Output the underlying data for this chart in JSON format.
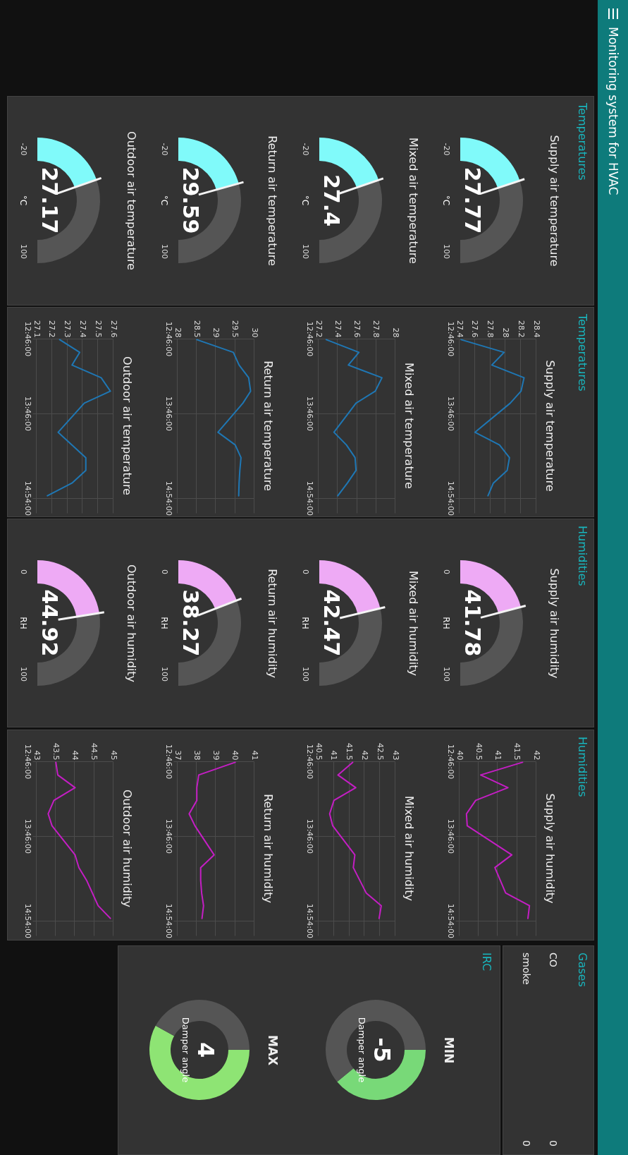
{
  "chart_data": [
    {
      "type": "other",
      "title": "Monitoring system for HVAC"
    },
    {
      "type": "other",
      "title": "Temperatures"
    },
    {
      "type": "donut",
      "title": "Supply air temperature",
      "categories": [
        null,
        null
      ],
      "values": [
        39.81,
        60.19
      ],
      "colors": [
        "#80fafa",
        "#555555"
      ],
      "annotations": [
        "27.77",
        "°C",
        "-20",
        "100"
      ]
    },
    {
      "type": "donut",
      "title": "Mixed air temperature",
      "categories": [
        null,
        null
      ],
      "values": [
        39.5,
        60.5
      ],
      "colors": [
        "#80fafa",
        "#555555"
      ],
      "annotations": [
        "27.4",
        "°C",
        "-20",
        "100"
      ]
    },
    {
      "type": "donut",
      "title": "Return air temperature",
      "categories": [
        null,
        null
      ],
      "values": [
        41.33,
        58.67
      ],
      "colors": [
        "#80fafa",
        "#555555"
      ],
      "annotations": [
        "29.59",
        "°C",
        "-20",
        "100"
      ]
    },
    {
      "type": "donut",
      "title": "Outdoor air temperature",
      "categories": [
        null,
        null
      ],
      "values": [
        39.31,
        60.69
      ],
      "colors": [
        "#80fafa",
        "#555555"
      ],
      "annotations": [
        "27.17",
        "°C",
        "-20",
        "100"
      ]
    },
    {
      "type": "other",
      "title": "Temperatures"
    },
    {
      "type": "line",
      "orientation": "horizontal",
      "title": "Supply air temperature",
      "x": [
        12.78,
        12.95,
        13.12,
        13.29,
        13.47,
        13.63,
        14.02,
        14.19,
        14.36,
        14.53,
        14.7,
        14.87
      ],
      "series": [
        {
          "color": "#1f77b4",
          "values": [
            27.42,
            27.98,
            27.82,
            28.24,
            28.2,
            28.06,
            27.6,
            27.92,
            28.05,
            28.02,
            27.84,
            27.77
          ]
        }
      ],
      "ylim": [
        15.1,
        12.7667
      ],
      "yticks": [
        {
          "value": 12.7667,
          "label": "12:46:00"
        },
        {
          "value": 13.7667,
          "label": "13:46:00"
        },
        {
          "value": 14.9,
          "label": "14:54:00"
        }
      ],
      "xlim": [
        27.4,
        28.4
      ],
      "xticks": [
        27.4,
        27.6,
        27.8,
        28,
        28.2,
        28.4
      ],
      "grid": true
    },
    {
      "type": "line",
      "orientation": "horizontal",
      "title": "Mixed air temperature",
      "x": [
        12.78,
        12.95,
        13.12,
        13.29,
        13.47,
        13.63,
        14.02,
        14.19,
        14.36,
        14.53,
        14.7,
        14.87
      ],
      "series": [
        {
          "color": "#1f77b4",
          "values": [
            27.28,
            27.62,
            27.51,
            27.86,
            27.79,
            27.59,
            27.36,
            27.49,
            27.58,
            27.59,
            27.5,
            27.4
          ]
        }
      ],
      "ylim": [
        15.1,
        12.7667
      ],
      "yticks": [
        {
          "value": 12.7667,
          "label": "12:46:00"
        },
        {
          "value": 13.7667,
          "label": "13:46:00"
        },
        {
          "value": 14.9,
          "label": "14:54:00"
        }
      ],
      "xlim": [
        27.2,
        28
      ],
      "xticks": [
        27.2,
        27.4,
        27.6,
        27.8,
        28
      ],
      "grid": true
    },
    {
      "type": "line",
      "orientation": "horizontal",
      "title": "Return air temperature",
      "x": [
        12.78,
        12.95,
        13.12,
        13.29,
        13.47,
        13.63,
        14.02,
        14.19,
        14.36,
        14.53,
        14.7,
        14.87
      ],
      "series": [
        {
          "color": "#1f77b4",
          "values": [
            28.5,
            29.45,
            29.6,
            29.85,
            29.9,
            29.7,
            29.05,
            29.5,
            29.65,
            29.62,
            29.6,
            29.59
          ]
        }
      ],
      "ylim": [
        15.1,
        12.7667
      ],
      "yticks": [
        {
          "value": 12.7667,
          "label": "12:46:00"
        },
        {
          "value": 13.7667,
          "label": "13:46:00"
        },
        {
          "value": 14.9,
          "label": "14:54:00"
        }
      ],
      "xlim": [
        28,
        30
      ],
      "xticks": [
        28,
        28.5,
        29,
        29.5,
        30
      ],
      "grid": true
    },
    {
      "type": "line",
      "orientation": "horizontal",
      "title": "Outdoor air temperature",
      "x": [
        12.78,
        12.95,
        13.12,
        13.29,
        13.47,
        13.63,
        14.02,
        14.19,
        14.36,
        14.53,
        14.7,
        14.87
      ],
      "series": [
        {
          "color": "#1f77b4",
          "values": [
            27.25,
            27.38,
            27.33,
            27.52,
            27.58,
            27.41,
            27.24,
            27.33,
            27.42,
            27.42,
            27.33,
            27.17
          ]
        }
      ],
      "ylim": [
        15.1,
        12.7667
      ],
      "yticks": [
        {
          "value": 12.7667,
          "label": "12:46:00"
        },
        {
          "value": 13.7667,
          "label": "13:46:00"
        },
        {
          "value": 14.9,
          "label": "14:54:00"
        }
      ],
      "xlim": [
        27.1,
        27.6
      ],
      "xticks": [
        27.1,
        27.2,
        27.3,
        27.4,
        27.5,
        27.6
      ],
      "grid": true
    },
    {
      "type": "other",
      "title": "Humidities"
    },
    {
      "type": "donut",
      "title": "Supply air humidity",
      "categories": [
        null,
        null
      ],
      "values": [
        41.78,
        58.22
      ],
      "colors": [
        "#eeaaf5",
        "#555555"
      ],
      "annotations": [
        "41.78",
        "RH",
        "0",
        "100"
      ]
    },
    {
      "type": "donut",
      "title": "Mixed air humidity",
      "categories": [
        null,
        null
      ],
      "values": [
        42.47,
        57.53
      ],
      "colors": [
        "#eeaaf5",
        "#555555"
      ],
      "annotations": [
        "42.47",
        "RH",
        "0",
        "100"
      ]
    },
    {
      "type": "donut",
      "title": "Return air humidity",
      "categories": [
        null,
        null
      ],
      "values": [
        38.27,
        61.73
      ],
      "colors": [
        "#eeaaf5",
        "#555555"
      ],
      "annotations": [
        "38.27",
        "RH",
        "0",
        "100"
      ]
    },
    {
      "type": "donut",
      "title": "Outdoor air humidity",
      "categories": [
        null,
        null
      ],
      "values": [
        44.92,
        55.08
      ],
      "colors": [
        "#eeaaf5",
        "#555555"
      ],
      "annotations": [
        "44.92",
        "RH",
        "0",
        "100"
      ]
    },
    {
      "type": "other",
      "title": "Humidities"
    },
    {
      "type": "line",
      "orientation": "horizontal",
      "title": "Supply air humidity",
      "x": [
        12.78,
        12.95,
        13.12,
        13.29,
        13.47,
        13.63,
        14.02,
        14.19,
        14.36,
        14.53,
        14.7,
        14.87
      ],
      "series": [
        {
          "color": "#c41ec4",
          "values": [
            41.64,
            40.55,
            41.26,
            40.42,
            40.18,
            40.2,
            41.36,
            40.92,
            41.06,
            41.2,
            41.82,
            41.78
          ]
        }
      ],
      "ylim": [
        15.1,
        12.7667
      ],
      "yticks": [
        {
          "value": 12.7667,
          "label": "12:46:00"
        },
        {
          "value": 13.7667,
          "label": "13:46:00"
        },
        {
          "value": 14.9,
          "label": "14:54:00"
        }
      ],
      "xlim": [
        40,
        42
      ],
      "xticks": [
        40,
        40.5,
        41,
        41.5,
        42
      ],
      "grid": true
    },
    {
      "type": "line",
      "orientation": "horizontal",
      "title": "Mixed air humidity",
      "x": [
        12.78,
        12.95,
        13.12,
        13.29,
        13.47,
        13.63,
        14.02,
        14.19,
        14.36,
        14.53,
        14.7,
        14.87
      ],
      "series": [
        {
          "color": "#c41ec4",
          "values": [
            41.61,
            41.13,
            41.71,
            41,
            40.86,
            40.96,
            41.68,
            41.63,
            41.84,
            42.05,
            42.54,
            42.47
          ]
        }
      ],
      "ylim": [
        15.1,
        12.7667
      ],
      "yticks": [
        {
          "value": 12.7667,
          "label": "12:46:00"
        },
        {
          "value": 13.7667,
          "label": "13:46:00"
        },
        {
          "value": 14.9,
          "label": "14:54:00"
        }
      ],
      "xlim": [
        40.5,
        43
      ],
      "xticks": [
        40.5,
        41,
        41.5,
        42,
        42.5,
        43
      ],
      "grid": true
    },
    {
      "type": "line",
      "orientation": "horizontal",
      "title": "Return air humidity",
      "x": [
        12.78,
        12.95,
        13.12,
        13.29,
        13.47,
        13.63,
        14.02,
        14.19,
        14.36,
        14.53,
        14.7,
        14.87
      ],
      "series": [
        {
          "color": "#c41ec4",
          "values": [
            40,
            38.1,
            38,
            38,
            37.6,
            37.9,
            38.9,
            38.2,
            38.2,
            38.25,
            38.35,
            38.27
          ]
        }
      ],
      "ylim": [
        15.1,
        12.7667
      ],
      "yticks": [
        {
          "value": 12.7667,
          "label": "12:46:00"
        },
        {
          "value": 13.7667,
          "label": "13:46:00"
        },
        {
          "value": 14.9,
          "label": "14:54:00"
        }
      ],
      "xlim": [
        37,
        41
      ],
      "xticks": [
        37,
        38,
        39,
        40,
        41
      ],
      "grid": true
    },
    {
      "type": "line",
      "orientation": "horizontal",
      "title": "Outdoor air humidity",
      "x": [
        12.78,
        12.95,
        13.12,
        13.29,
        13.47,
        13.63,
        14.02,
        14.19,
        14.36,
        14.53,
        14.7,
        14.87
      ],
      "series": [
        {
          "color": "#c41ec4",
          "values": [
            43.5,
            43.55,
            44,
            43.45,
            43.3,
            43.4,
            44,
            44.1,
            44.3,
            44.45,
            44.6,
            44.92
          ]
        }
      ],
      "ylim": [
        15.1,
        12.7667
      ],
      "yticks": [
        {
          "value": 12.7667,
          "label": "12:46:00"
        },
        {
          "value": 13.7667,
          "label": "13:46:00"
        },
        {
          "value": 14.9,
          "label": "14:54:00"
        }
      ],
      "xlim": [
        43,
        45
      ],
      "xticks": [
        43,
        43.5,
        44,
        44.5,
        45
      ],
      "grid": true
    },
    {
      "type": "other",
      "title": "Gases",
      "categories": [
        "CO",
        "smoke"
      ],
      "values": [
        0,
        0
      ],
      "data_labels": true
    },
    {
      "type": "other",
      "title": "IRC"
    },
    {
      "type": "donut",
      "title": "MIN",
      "categories": [
        null,
        null
      ],
      "values": [
        39,
        61
      ],
      "colors": [
        "#78d978",
        "#555555"
      ],
      "annotations": [
        "-5",
        "Damper angle"
      ]
    },
    {
      "type": "donut",
      "title": "MAX",
      "categories": [
        null,
        null
      ],
      "values": [
        58,
        42
      ],
      "colors": [
        "#8ee474",
        "#555555"
      ],
      "annotations": [
        "4",
        "Damper angle"
      ]
    }
  ]
}
